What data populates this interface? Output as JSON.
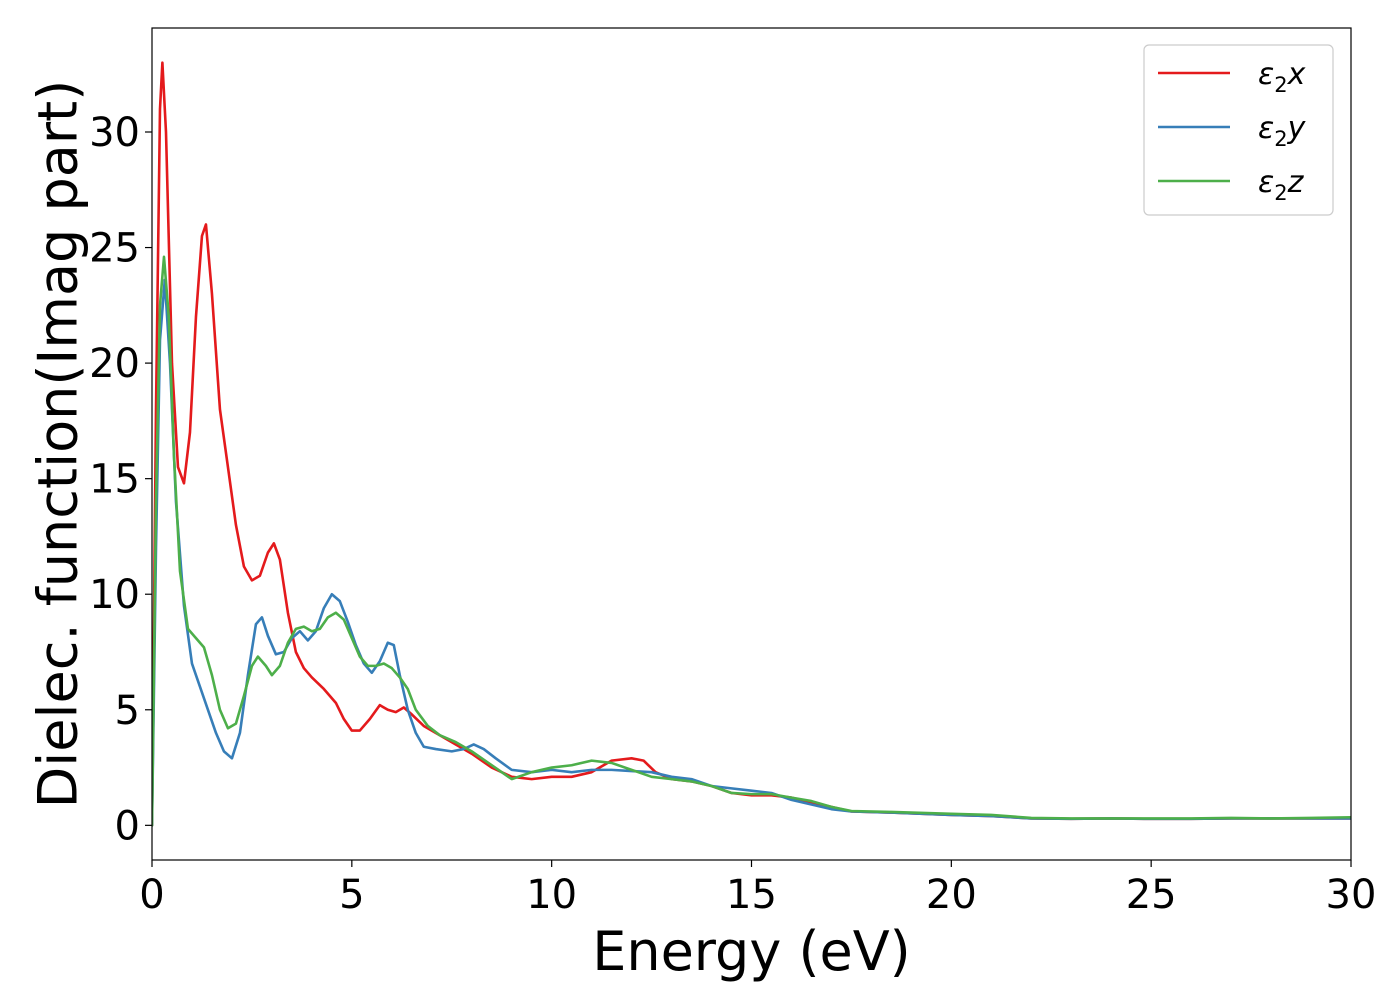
{
  "chart_data": {
    "type": "line",
    "xlabel": "Energy (eV)",
    "ylabel": "Dielec. function(Imag part)",
    "xlim": [
      0,
      30
    ],
    "ylim": [
      -1.5,
      34.5
    ],
    "x_ticks": [
      0,
      5,
      10,
      15,
      20,
      25,
      30
    ],
    "y_ticks": [
      0,
      5,
      10,
      15,
      20,
      25,
      30
    ],
    "grid": false,
    "legend_position": "top-right",
    "series": [
      {
        "name": "ε₂x",
        "legend_base": "ε",
        "legend_sub": "2",
        "legend_suffix": "x",
        "color": "#e41a1c",
        "points": [
          [
            0,
            0
          ],
          [
            0.1,
            18
          ],
          [
            0.2,
            31
          ],
          [
            0.26,
            33
          ],
          [
            0.35,
            30
          ],
          [
            0.5,
            20
          ],
          [
            0.65,
            15.5
          ],
          [
            0.8,
            14.8
          ],
          [
            0.95,
            17
          ],
          [
            1.1,
            22
          ],
          [
            1.25,
            25.5
          ],
          [
            1.35,
            26
          ],
          [
            1.5,
            23
          ],
          [
            1.7,
            18
          ],
          [
            1.9,
            15.5
          ],
          [
            2.1,
            13
          ],
          [
            2.3,
            11.2
          ],
          [
            2.5,
            10.6
          ],
          [
            2.7,
            10.8
          ],
          [
            2.9,
            11.8
          ],
          [
            3.05,
            12.2
          ],
          [
            3.2,
            11.5
          ],
          [
            3.4,
            9.2
          ],
          [
            3.6,
            7.5
          ],
          [
            3.8,
            6.8
          ],
          [
            4.0,
            6.4
          ],
          [
            4.3,
            5.9
          ],
          [
            4.6,
            5.3
          ],
          [
            4.8,
            4.6
          ],
          [
            5.0,
            4.1
          ],
          [
            5.2,
            4.1
          ],
          [
            5.45,
            4.6
          ],
          [
            5.7,
            5.2
          ],
          [
            5.9,
            5.0
          ],
          [
            6.1,
            4.9
          ],
          [
            6.3,
            5.1
          ],
          [
            6.5,
            4.8
          ],
          [
            6.8,
            4.3
          ],
          [
            7.2,
            3.9
          ],
          [
            7.6,
            3.5
          ],
          [
            8.0,
            3.1
          ],
          [
            8.5,
            2.5
          ],
          [
            9.0,
            2.1
          ],
          [
            9.5,
            2.0
          ],
          [
            10.0,
            2.1
          ],
          [
            10.5,
            2.1
          ],
          [
            11.0,
            2.3
          ],
          [
            11.5,
            2.8
          ],
          [
            12.0,
            2.9
          ],
          [
            12.3,
            2.8
          ],
          [
            12.6,
            2.3
          ],
          [
            13.0,
            2.0
          ],
          [
            13.5,
            1.9
          ],
          [
            14.0,
            1.7
          ],
          [
            14.5,
            1.4
          ],
          [
            15.0,
            1.3
          ],
          [
            15.5,
            1.3
          ],
          [
            16.0,
            1.2
          ],
          [
            16.5,
            1.0
          ],
          [
            17.0,
            0.8
          ],
          [
            17.5,
            0.6
          ],
          [
            18.5,
            0.55
          ],
          [
            20,
            0.45
          ],
          [
            21,
            0.4
          ],
          [
            22,
            0.3
          ],
          [
            23,
            0.28
          ],
          [
            24,
            0.3
          ],
          [
            25,
            0.28
          ],
          [
            26,
            0.28
          ],
          [
            27,
            0.3
          ],
          [
            28,
            0.3
          ],
          [
            29,
            0.3
          ],
          [
            30,
            0.3
          ]
        ]
      },
      {
        "name": "ε₂y",
        "legend_base": "ε",
        "legend_sub": "2",
        "legend_suffix": "y",
        "color": "#377eb8",
        "points": [
          [
            0,
            0
          ],
          [
            0.1,
            12
          ],
          [
            0.2,
            21
          ],
          [
            0.32,
            23.6
          ],
          [
            0.45,
            20
          ],
          [
            0.6,
            14
          ],
          [
            0.8,
            9.5
          ],
          [
            1.0,
            7
          ],
          [
            1.2,
            6
          ],
          [
            1.4,
            5
          ],
          [
            1.6,
            4
          ],
          [
            1.8,
            3.2
          ],
          [
            2.0,
            2.9
          ],
          [
            2.2,
            4
          ],
          [
            2.4,
            6.5
          ],
          [
            2.6,
            8.7
          ],
          [
            2.75,
            9.0
          ],
          [
            2.9,
            8.2
          ],
          [
            3.1,
            7.4
          ],
          [
            3.3,
            7.5
          ],
          [
            3.5,
            8.1
          ],
          [
            3.7,
            8.4
          ],
          [
            3.9,
            8.0
          ],
          [
            4.1,
            8.4
          ],
          [
            4.3,
            9.4
          ],
          [
            4.5,
            10.0
          ],
          [
            4.7,
            9.7
          ],
          [
            4.9,
            8.8
          ],
          [
            5.1,
            7.8
          ],
          [
            5.3,
            7.0
          ],
          [
            5.5,
            6.6
          ],
          [
            5.7,
            7.1
          ],
          [
            5.9,
            7.9
          ],
          [
            6.05,
            7.8
          ],
          [
            6.2,
            6.5
          ],
          [
            6.4,
            5.0
          ],
          [
            6.6,
            4.0
          ],
          [
            6.8,
            3.4
          ],
          [
            7.1,
            3.3
          ],
          [
            7.5,
            3.2
          ],
          [
            7.8,
            3.3
          ],
          [
            8.05,
            3.5
          ],
          [
            8.3,
            3.3
          ],
          [
            8.6,
            2.9
          ],
          [
            9.0,
            2.4
          ],
          [
            9.5,
            2.3
          ],
          [
            10.0,
            2.4
          ],
          [
            10.5,
            2.3
          ],
          [
            11.0,
            2.4
          ],
          [
            11.5,
            2.4
          ],
          [
            12.0,
            2.35
          ],
          [
            12.5,
            2.3
          ],
          [
            13.0,
            2.1
          ],
          [
            13.5,
            2.0
          ],
          [
            14.0,
            1.7
          ],
          [
            14.5,
            1.6
          ],
          [
            15.0,
            1.5
          ],
          [
            15.5,
            1.4
          ],
          [
            16.0,
            1.1
          ],
          [
            16.5,
            0.9
          ],
          [
            17.0,
            0.7
          ],
          [
            17.5,
            0.6
          ],
          [
            18.5,
            0.55
          ],
          [
            20,
            0.45
          ],
          [
            21,
            0.4
          ],
          [
            22,
            0.3
          ],
          [
            23,
            0.28
          ],
          [
            24,
            0.3
          ],
          [
            25,
            0.28
          ],
          [
            26,
            0.28
          ],
          [
            27,
            0.3
          ],
          [
            28,
            0.3
          ],
          [
            29,
            0.3
          ],
          [
            30,
            0.3
          ]
        ]
      },
      {
        "name": "ε₂z",
        "legend_base": "ε",
        "legend_sub": "2",
        "legend_suffix": "z",
        "color": "#4daf4a",
        "points": [
          [
            0,
            0
          ],
          [
            0.1,
            14
          ],
          [
            0.2,
            22.5
          ],
          [
            0.3,
            24.6
          ],
          [
            0.42,
            22
          ],
          [
            0.55,
            16
          ],
          [
            0.7,
            11
          ],
          [
            0.9,
            8.5
          ],
          [
            1.1,
            8.1
          ],
          [
            1.3,
            7.7
          ],
          [
            1.5,
            6.5
          ],
          [
            1.7,
            5.0
          ],
          [
            1.9,
            4.2
          ],
          [
            2.1,
            4.4
          ],
          [
            2.3,
            5.6
          ],
          [
            2.5,
            6.9
          ],
          [
            2.65,
            7.3
          ],
          [
            2.85,
            6.9
          ],
          [
            3.0,
            6.5
          ],
          [
            3.2,
            6.9
          ],
          [
            3.4,
            7.9
          ],
          [
            3.6,
            8.5
          ],
          [
            3.8,
            8.6
          ],
          [
            4.0,
            8.4
          ],
          [
            4.2,
            8.5
          ],
          [
            4.4,
            9.0
          ],
          [
            4.6,
            9.2
          ],
          [
            4.8,
            8.9
          ],
          [
            5.0,
            8.1
          ],
          [
            5.2,
            7.3
          ],
          [
            5.4,
            6.9
          ],
          [
            5.6,
            6.9
          ],
          [
            5.8,
            7.0
          ],
          [
            6.0,
            6.8
          ],
          [
            6.2,
            6.4
          ],
          [
            6.4,
            5.9
          ],
          [
            6.6,
            5.0
          ],
          [
            6.9,
            4.3
          ],
          [
            7.2,
            3.9
          ],
          [
            7.6,
            3.6
          ],
          [
            8.0,
            3.2
          ],
          [
            8.5,
            2.6
          ],
          [
            9.0,
            2.0
          ],
          [
            9.5,
            2.3
          ],
          [
            10.0,
            2.5
          ],
          [
            10.5,
            2.6
          ],
          [
            11.0,
            2.8
          ],
          [
            11.5,
            2.7
          ],
          [
            12.0,
            2.4
          ],
          [
            12.5,
            2.1
          ],
          [
            13.0,
            2.0
          ],
          [
            13.5,
            1.9
          ],
          [
            14.0,
            1.7
          ],
          [
            14.5,
            1.4
          ],
          [
            15.0,
            1.35
          ],
          [
            15.5,
            1.35
          ],
          [
            16.0,
            1.2
          ],
          [
            16.5,
            1.05
          ],
          [
            17.0,
            0.8
          ],
          [
            17.5,
            0.62
          ],
          [
            18.5,
            0.58
          ],
          [
            20,
            0.5
          ],
          [
            21,
            0.45
          ],
          [
            22,
            0.32
          ],
          [
            23,
            0.3
          ],
          [
            24,
            0.3
          ],
          [
            25,
            0.3
          ],
          [
            26,
            0.3
          ],
          [
            27,
            0.32
          ],
          [
            28,
            0.3
          ],
          [
            29,
            0.32
          ],
          [
            30,
            0.35
          ]
        ]
      }
    ]
  }
}
